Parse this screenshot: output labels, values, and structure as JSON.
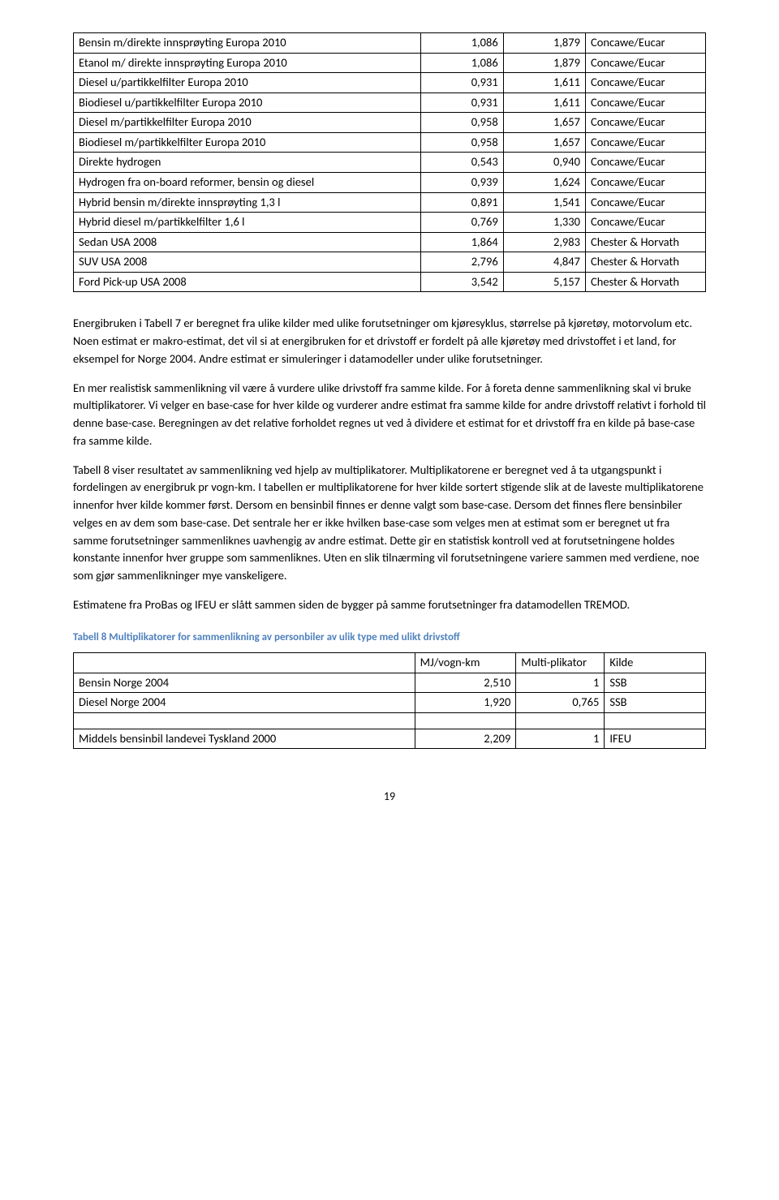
{
  "table1": {
    "rows": [
      {
        "desc": "Bensin m/direkte innsprøyting Europa 2010",
        "v1": "1,086",
        "v2": "1,879",
        "src": "Concawe/Eucar"
      },
      {
        "desc": "Etanol  m/ direkte innsprøyting  Europa 2010",
        "v1": "1,086",
        "v2": "1,879",
        "src": "Concawe/Eucar"
      },
      {
        "desc": "Diesel u/partikkelfilter Europa 2010",
        "v1": "0,931",
        "v2": "1,611",
        "src": "Concawe/Eucar"
      },
      {
        "desc": "Biodiesel u/partikkelfilter Europa 2010",
        "v1": "0,931",
        "v2": "1,611",
        "src": "Concawe/Eucar"
      },
      {
        "desc": "Diesel m/partikkelfilter Europa 2010",
        "v1": "0,958",
        "v2": "1,657",
        "src": "Concawe/Eucar"
      },
      {
        "desc": "Biodiesel  m/partikkelfilter Europa 2010",
        "v1": "0,958",
        "v2": "1,657",
        "src": "Concawe/Eucar"
      },
      {
        "desc": "Direkte hydrogen",
        "v1": "0,543",
        "v2": "0,940",
        "src": "Concawe/Eucar"
      },
      {
        "desc": "Hydrogen fra on-board reformer, bensin og diesel",
        "v1": "0,939",
        "v2": "1,624",
        "src": "Concawe/Eucar"
      },
      {
        "desc": "Hybrid bensin m/direkte innsprøyting 1,3 l",
        "v1": "0,891",
        "v2": "1,541",
        "src": "Concawe/Eucar"
      },
      {
        "desc": "Hybrid diesel m/partikkelfilter 1,6 l",
        "v1": "0,769",
        "v2": "1,330",
        "src": "Concawe/Eucar"
      },
      {
        "desc": "Sedan USA 2008",
        "v1": "1,864",
        "v2": "2,983",
        "src": "Chester & Horvath"
      },
      {
        "desc": "SUV USA 2008",
        "v1": "2,796",
        "v2": "4,847",
        "src": "Chester & Horvath"
      },
      {
        "desc": "Ford Pick-up USA 2008",
        "v1": "3,542",
        "v2": "5,157",
        "src": "Chester & Horvath"
      }
    ]
  },
  "paragraphs": {
    "p1": "Energibruken i Tabell 7 er beregnet fra ulike kilder med ulike forutsetninger om kjøresyklus, størrelse på kjøretøy, motorvolum etc. Noen estimat er makro-estimat, det vil si at energibruken for et drivstoff er fordelt på alle kjøretøy med drivstoffet i et land, for eksempel for Norge 2004. Andre estimat er simuleringer i datamodeller under ulike forutsetninger.",
    "p2": " En mer realistisk sammenlikning vil være å vurdere ulike drivstoff fra samme kilde. For å foreta denne sammenlikning skal vi bruke multiplikatorer. Vi velger en base-case for hver kilde og vurderer andre estimat fra samme kilde for andre drivstoff relativt i forhold til denne base-case. Beregningen av det relative forholdet regnes ut ved å dividere et estimat for et drivstoff fra en kilde på base-case fra samme kilde.",
    "p3": "Tabell 8 viser resultatet av sammenlikning ved hjelp av multiplikatorer. Multiplikatorene er beregnet ved å ta utgangspunkt i fordelingen av energibruk pr vogn-km. I tabellen er multiplikatorene for hver kilde sortert stigende slik at de laveste multiplikatorene innenfor hver kilde kommer først. Dersom en bensinbil finnes er denne valgt som base-case. Dersom det finnes flere bensinbiler velges en av dem som base-case. Det sentrale her er ikke hvilken base-case som velges men at estimat som er beregnet ut fra samme forutsetninger sammenliknes uavhengig av andre estimat. Dette gir en statistisk kontroll ved at forutsetningene holdes konstante innenfor hver gruppe som sammenliknes. Uten en slik tilnærming vil forutsetningene variere sammen med verdiene, noe som gjør sammenlikninger mye vanskeligere.",
    "p4": "Estimatene fra ProBas og IFEU er slått sammen siden de bygger på samme forutsetninger fra datamodellen TREMOD."
  },
  "caption": "Tabell 8 Multiplikatorer for sammenlikning av personbiler av ulik type med ulikt drivstoff",
  "table2": {
    "headers": {
      "h1": "MJ/vogn-km",
      "h2": "Multi-plikator",
      "h3": "Kilde"
    },
    "rows": [
      {
        "desc": "Bensin Norge 2004",
        "v1": "2,510",
        "v2": "1",
        "src": "SSB"
      },
      {
        "desc": "Diesel Norge 2004",
        "v1": "1,920",
        "v2": "0,765",
        "src": "SSB"
      }
    ],
    "rows2": [
      {
        "desc": "Middels bensinbil landevei Tyskland 2000",
        "v1": "2,209",
        "v2": "1",
        "src": "IFEU"
      }
    ]
  },
  "pageNumber": "19"
}
